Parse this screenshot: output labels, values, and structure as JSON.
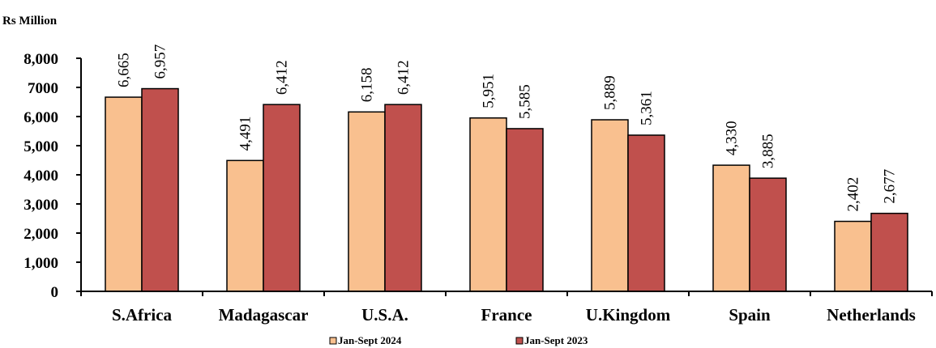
{
  "chart_data": {
    "type": "bar",
    "unit_label": "Rs Million",
    "categories": [
      "S.Africa",
      "Madagascar",
      "U.S.A.",
      "France",
      "U.Kingdom",
      "Spain",
      "Netherlands"
    ],
    "series": [
      {
        "name": "Jan-Sept 2024",
        "color": "#F9C08F",
        "values": [
          6665,
          4491,
          6158,
          5951,
          5889,
          4330,
          2402
        ],
        "labels": [
          "6,665",
          "4,491",
          "6,158",
          "5,951",
          "5,889",
          "4,330",
          "2,402"
        ]
      },
      {
        "name": "Jan-Sept 2023",
        "color": "#C0504D",
        "values": [
          6957,
          6412,
          6412,
          5585,
          5361,
          3885,
          2677
        ],
        "labels": [
          "6,957",
          "6,412",
          "6,412",
          "5,585",
          "5,361",
          "3,885",
          "2,677"
        ]
      }
    ],
    "y_ticks": [
      0,
      1000,
      2000,
      3000,
      4000,
      5000,
      6000,
      7000,
      8000
    ],
    "y_tick_labels": [
      "0",
      "1,000",
      "2,000",
      "3,000",
      "4,000",
      "5,000",
      "6,000",
      "7000",
      "8,000"
    ],
    "ylim": [
      0,
      8000
    ],
    "grid": false,
    "legend_position": "bottom"
  }
}
